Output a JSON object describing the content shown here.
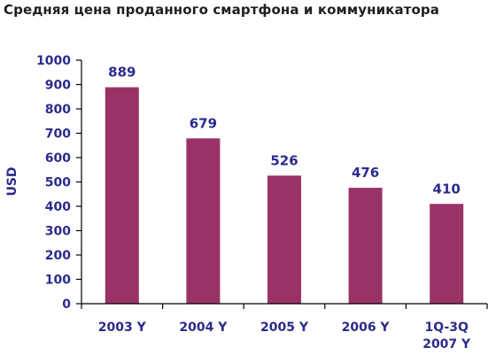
{
  "chart_data": {
    "type": "bar",
    "title": "Средняя цена проданного смартфона и коммуникатора",
    "ylabel": "USD",
    "xlabel": "",
    "categories": [
      [
        "2003 Y"
      ],
      [
        "2004 Y"
      ],
      [
        "2005 Y"
      ],
      [
        "2006 Y"
      ],
      [
        "1Q-3Q",
        "2007 Y"
      ]
    ],
    "values": [
      889,
      679,
      526,
      476,
      410
    ],
    "ylim": [
      0,
      1000
    ],
    "yticks": [
      0,
      100,
      200,
      300,
      400,
      500,
      600,
      700,
      800,
      900,
      1000
    ],
    "bar_color": "#993366",
    "text_color": "#2b2b8c",
    "grid": false,
    "data_labels": true
  }
}
